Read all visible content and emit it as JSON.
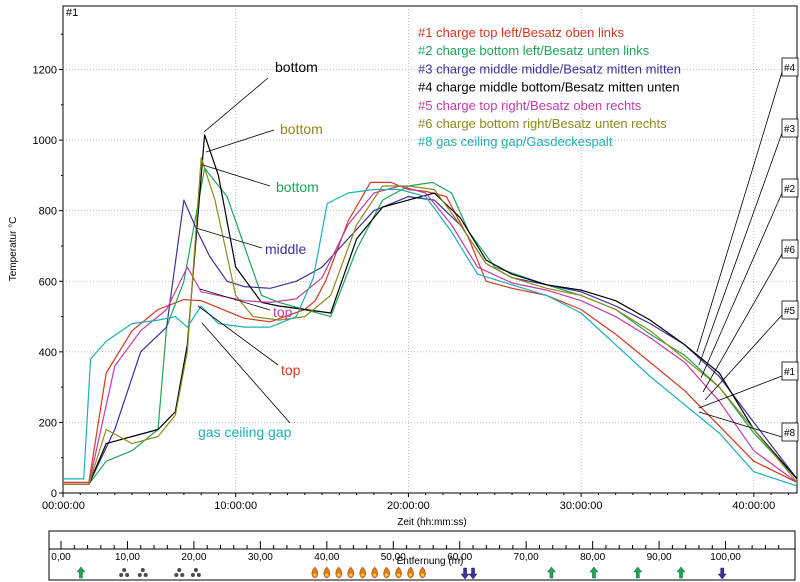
{
  "chart_data": {
    "type": "line",
    "panel_id": "#1",
    "xlabel": "Zeit (hh:mm:ss)",
    "ylabel": "Temperatur °C",
    "xlim": [
      0,
      42.5
    ],
    "ylim": [
      0,
      1380
    ],
    "x_ticks": [
      0,
      10,
      20,
      30,
      40
    ],
    "x_tick_labels": [
      "00:00:00",
      "10:00:00",
      "20:00:00",
      "30:00:00",
      "40:00:00"
    ],
    "y_ticks": [
      0,
      200,
      400,
      600,
      800,
      1000,
      1200
    ],
    "grid": true,
    "legend_position": "top-right",
    "series": [
      {
        "name": "#1 charge top left/Besatz oben links",
        "tag": "#1",
        "color": "#d0391f",
        "x": [
          0,
          1.5,
          2.5,
          4,
          5.5,
          7,
          8,
          9,
          10.5,
          12,
          14,
          14.6,
          15.2,
          16.5,
          17.8,
          19,
          20,
          21,
          22.2,
          23.5,
          24.5,
          26,
          28,
          30,
          32,
          34,
          36,
          38,
          40,
          42.5
        ],
        "y": [
          30,
          30,
          340,
          460,
          520,
          548,
          545,
          525,
          495,
          485,
          520,
          545,
          600,
          770,
          880,
          880,
          860,
          855,
          840,
          720,
          600,
          580,
          560,
          520,
          450,
          370,
          290,
          190,
          90,
          30
        ]
      },
      {
        "name": "#2 charge bottom left/Besatz unten links",
        "tag": "#2",
        "color": "#1ea55a",
        "x": [
          0,
          1.5,
          2.5,
          4,
          5.5,
          6,
          7,
          8.2,
          9.5,
          10.5,
          11.5,
          12.5,
          14,
          15.5,
          17,
          18.5,
          20,
          21.4,
          22.5,
          23.5,
          25,
          28,
          30,
          32,
          34,
          36,
          38,
          40,
          42.5
        ],
        "y": [
          25,
          25,
          90,
          120,
          180,
          470,
          600,
          920,
          840,
          700,
          560,
          540,
          520,
          500,
          690,
          830,
          870,
          880,
          850,
          740,
          640,
          590,
          560,
          520,
          450,
          390,
          300,
          170,
          40
        ]
      },
      {
        "name": "#3 charge middle middle/Besatz mitten mitten",
        "tag": "#3",
        "color": "#3b3296",
        "x": [
          0,
          1.5,
          3,
          4.5,
          6,
          7,
          7.8,
          8.5,
          9.5,
          10.5,
          12,
          13.5,
          15,
          16.5,
          18,
          20,
          21.5,
          23,
          24.5,
          26,
          28,
          30,
          32,
          34,
          36,
          38,
          40,
          42.5
        ],
        "y": [
          25,
          25,
          180,
          400,
          470,
          830,
          740,
          670,
          600,
          585,
          580,
          600,
          640,
          720,
          800,
          840,
          830,
          760,
          650,
          610,
          590,
          570,
          530,
          480,
          420,
          330,
          200,
          40
        ]
      },
      {
        "name": "#4 charge middle bottom/Besatz mitten unten",
        "tag": "#4",
        "color": "#000000",
        "x": [
          0,
          1.5,
          2.5,
          4,
          5.5,
          6.5,
          7.2,
          8.2,
          9,
          10,
          11.5,
          12.5,
          14,
          15.5,
          17,
          18.5,
          20,
          21.5,
          23,
          24.5,
          26,
          28,
          30,
          32,
          34,
          36,
          38,
          40,
          42.5
        ],
        "y": [
          25,
          25,
          140,
          160,
          180,
          230,
          420,
          1015,
          900,
          640,
          540,
          530,
          520,
          510,
          720,
          810,
          830,
          850,
          780,
          660,
          620,
          590,
          575,
          545,
          490,
          420,
          340,
          180,
          40
        ]
      },
      {
        "name": "#5 charge top right/Besatz oben rechts",
        "tag": "#5",
        "color": "#c53aa8",
        "x": [
          0,
          1.5,
          3,
          4.5,
          6,
          7.2,
          8,
          9,
          10.5,
          12,
          13.5,
          15,
          16.5,
          18,
          19.5,
          21,
          22.5,
          24,
          26,
          28,
          30,
          32,
          34,
          36,
          38,
          40,
          42.5
        ],
        "y": [
          25,
          25,
          360,
          460,
          520,
          640,
          570,
          560,
          545,
          540,
          550,
          610,
          760,
          850,
          870,
          850,
          760,
          640,
          595,
          575,
          545,
          500,
          440,
          370,
          260,
          120,
          30
        ]
      },
      {
        "name": "#6 charge bottom right/Besatz unten rechts",
        "tag": "#6",
        "color": "#8e8a1c",
        "x": [
          0,
          1.5,
          2.5,
          4,
          5.5,
          6.5,
          7.2,
          8,
          8.8,
          10,
          11,
          12.5,
          14,
          15.5,
          17,
          18.5,
          20,
          21.5,
          23,
          24.5,
          26,
          28,
          30,
          32,
          34,
          36,
          38,
          40,
          42.5
        ],
        "y": [
          25,
          25,
          180,
          140,
          160,
          220,
          400,
          950,
          830,
          560,
          500,
          490,
          500,
          560,
          760,
          870,
          870,
          860,
          760,
          650,
          610,
          580,
          560,
          520,
          460,
          380,
          300,
          180,
          30
        ]
      },
      {
        "name": "#8 gas ceiling gap/Gasdeckespalt",
        "tag": "#8",
        "color": "#1cb0b5",
        "x": [
          0,
          1.2,
          1.6,
          2.5,
          4,
          5.5,
          6.5,
          7.2,
          8,
          9,
          10.5,
          12,
          13.5,
          14.5,
          15.3,
          16.5,
          18,
          19.5,
          21,
          22.5,
          24,
          26,
          28,
          30,
          32,
          34,
          36,
          38,
          40,
          42.5
        ],
        "y": [
          40,
          40,
          380,
          430,
          480,
          490,
          500,
          470,
          530,
          480,
          470,
          470,
          500,
          610,
          820,
          850,
          860,
          860,
          840,
          740,
          620,
          590,
          560,
          510,
          420,
          330,
          250,
          170,
          60,
          20
        ]
      }
    ],
    "annotations": [
      {
        "text": "bottom",
        "color": "#000000"
      },
      {
        "text": "bottom",
        "color": "#8e8a1c"
      },
      {
        "text": "bottom",
        "color": "#1ea55a"
      },
      {
        "text": "middle",
        "color": "#3b3296"
      },
      {
        "text": "top",
        "color": "#c53aa8"
      },
      {
        "text": "top",
        "color": "#d0391f"
      },
      {
        "text": "gas ceiling gap",
        "color": "#1cb0b5"
      }
    ]
  },
  "distance_axis": {
    "label": "Entfernung (m)",
    "xlim": [
      0,
      110
    ],
    "ticks": [
      0,
      10,
      20,
      30,
      40,
      50,
      60,
      70,
      80,
      90,
      100
    ],
    "tick_labels": [
      "0,00",
      "10,00",
      "20,00",
      "30,00",
      "40,00",
      "50,00",
      "60,00",
      "70,00",
      "80,00",
      "90,00",
      "100,00"
    ],
    "markers": [
      {
        "kind": "arrow-up",
        "color": "#1ea55a",
        "at": 3
      },
      {
        "kind": "fan",
        "color": "#4a4a4a",
        "at": 9.5
      },
      {
        "kind": "fan",
        "color": "#4a4a4a",
        "at": 12.3
      },
      {
        "kind": "fan",
        "color": "#4a4a4a",
        "at": 17.8
      },
      {
        "kind": "fan",
        "color": "#4a4a4a",
        "at": 20.3
      },
      {
        "kind": "flame",
        "color": "#e07a1a",
        "at": 38.2
      },
      {
        "kind": "flame",
        "color": "#e07a1a",
        "at": 40
      },
      {
        "kind": "flame",
        "color": "#e07a1a",
        "at": 41.8
      },
      {
        "kind": "flame",
        "color": "#e07a1a",
        "at": 43.6
      },
      {
        "kind": "flame",
        "color": "#e07a1a",
        "at": 45.4
      },
      {
        "kind": "flame",
        "color": "#e07a1a",
        "at": 47.2
      },
      {
        "kind": "flame",
        "color": "#e07a1a",
        "at": 49
      },
      {
        "kind": "flame",
        "color": "#e07a1a",
        "at": 50.8
      },
      {
        "kind": "flame",
        "color": "#e07a1a",
        "at": 52.6
      },
      {
        "kind": "flame",
        "color": "#e07a1a",
        "at": 54.4
      },
      {
        "kind": "arrow-down",
        "color": "#3b3296",
        "at": 60.8
      },
      {
        "kind": "arrow-down",
        "color": "#3b3296",
        "at": 62
      },
      {
        "kind": "arrow-up",
        "color": "#1ea55a",
        "at": 73.8
      },
      {
        "kind": "arrow-up",
        "color": "#1ea55a",
        "at": 80.2
      },
      {
        "kind": "arrow-up",
        "color": "#1ea55a",
        "at": 86.8
      },
      {
        "kind": "arrow-up",
        "color": "#1ea55a",
        "at": 93.3
      },
      {
        "kind": "arrow-down",
        "color": "#3b3296",
        "at": 99.5
      }
    ]
  }
}
